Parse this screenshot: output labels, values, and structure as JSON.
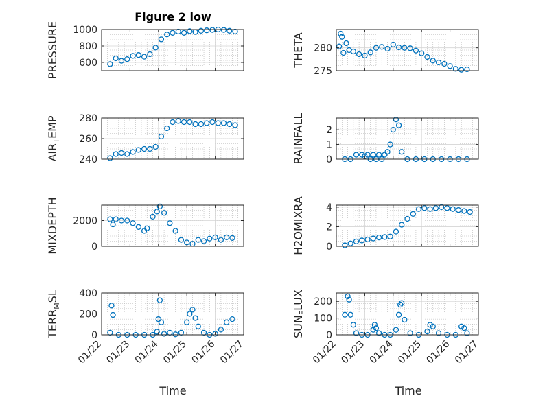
{
  "colors": {
    "marker": "#0072BD",
    "axis": "#262626",
    "grid": "#b0b0b0",
    "background": "#ffffff"
  },
  "chart_data": [
    {
      "type": "scatter",
      "title": "Figure 2 low",
      "ylabel": "PRESSURE",
      "ylim": [
        500,
        1000
      ],
      "yticks": [
        600,
        800,
        1000
      ],
      "xlim": [
        0,
        5
      ],
      "xgrid": true,
      "ygrid": true,
      "minor_grid": true,
      "series": [
        {
          "x": [
            0.3,
            0.5,
            0.7,
            0.9,
            1.1,
            1.3,
            1.5,
            1.7,
            1.9,
            2.1,
            2.3,
            2.5,
            2.7,
            2.9,
            3.1,
            3.3,
            3.5,
            3.7,
            3.9,
            4.1,
            4.3,
            4.5,
            4.7
          ],
          "y": [
            580,
            650,
            620,
            640,
            680,
            690,
            670,
            700,
            780,
            880,
            940,
            960,
            975,
            960,
            980,
            970,
            985,
            990,
            995,
            1000,
            995,
            985,
            975
          ]
        }
      ]
    },
    {
      "type": "scatter",
      "ylabel": "THETA",
      "ylim": [
        275,
        284
      ],
      "yticks": [
        275,
        280
      ],
      "xlim": [
        0,
        5
      ],
      "xgrid": true,
      "ygrid": true,
      "minor_grid": true,
      "series": [
        {
          "x": [
            0.1,
            0.15,
            0.2,
            0.25,
            0.35,
            0.45,
            0.6,
            0.8,
            1.0,
            1.2,
            1.4,
            1.6,
            1.8,
            2.0,
            2.2,
            2.4,
            2.6,
            2.8,
            3.0,
            3.2,
            3.4,
            3.6,
            3.8,
            4.0,
            4.2,
            4.4,
            4.6
          ],
          "y": [
            280.3,
            283.1,
            282.4,
            278.9,
            281.0,
            279.5,
            279.2,
            278.6,
            278.3,
            279.0,
            280.0,
            280.2,
            279.8,
            280.7,
            280.1,
            280.0,
            279.9,
            279.4,
            278.8,
            278.0,
            277.2,
            276.8,
            276.5,
            276.0,
            275.4,
            275.2,
            275.3
          ]
        }
      ]
    },
    {
      "type": "scatter",
      "ylabel": "AIR_TEMP",
      "ylim": [
        240,
        280
      ],
      "yticks": [
        240,
        260,
        280
      ],
      "xlim": [
        0,
        5
      ],
      "xgrid": true,
      "ygrid": true,
      "minor_grid": true,
      "series": [
        {
          "x": [
            0.3,
            0.5,
            0.7,
            0.9,
            1.1,
            1.3,
            1.5,
            1.7,
            1.9,
            2.1,
            2.3,
            2.5,
            2.7,
            2.9,
            3.1,
            3.3,
            3.5,
            3.7,
            3.9,
            4.1,
            4.3,
            4.5,
            4.7
          ],
          "y": [
            241,
            245,
            246,
            245,
            247,
            249,
            250,
            250,
            252,
            262,
            270,
            276,
            277,
            276,
            276,
            274,
            274,
            275,
            276,
            275,
            275,
            274,
            273
          ]
        }
      ]
    },
    {
      "type": "scatter",
      "ylabel": "RAINFALL",
      "ylim": [
        0,
        2.8
      ],
      "yticks": [
        0,
        1,
        2
      ],
      "xlim": [
        0,
        5
      ],
      "xgrid": true,
      "ygrid": true,
      "minor_grid": true,
      "series": [
        {
          "x": [
            0.3,
            0.5,
            0.7,
            0.9,
            1.0,
            1.1,
            1.2,
            1.3,
            1.4,
            1.5,
            1.6,
            1.7,
            1.8,
            1.9,
            2.0,
            2.1,
            2.2,
            2.3,
            2.5,
            2.8,
            3.1,
            3.4,
            3.7,
            4.0,
            4.3,
            4.6
          ],
          "y": [
            0.0,
            0.0,
            0.3,
            0.3,
            0.2,
            0.3,
            0.0,
            0.3,
            0.0,
            0.3,
            0.0,
            0.3,
            0.5,
            1.0,
            2.0,
            2.7,
            2.3,
            0.5,
            0.0,
            0.0,
            0.0,
            0.0,
            0.0,
            0.0,
            0.0,
            0.0
          ]
        }
      ]
    },
    {
      "type": "scatter",
      "ylabel": "MIXDEPTH",
      "ylim": [
        0,
        3200
      ],
      "yticks": [
        0,
        2000
      ],
      "xlim": [
        0,
        5
      ],
      "xgrid": true,
      "ygrid": true,
      "minor_grid": true,
      "series": [
        {
          "x": [
            0.3,
            0.4,
            0.5,
            0.7,
            0.9,
            1.1,
            1.3,
            1.5,
            1.6,
            1.8,
            1.95,
            2.05,
            2.2,
            2.4,
            2.6,
            2.8,
            3.0,
            3.2,
            3.4,
            3.6,
            3.8,
            4.0,
            4.2,
            4.4,
            4.6
          ],
          "y": [
            2100,
            1700,
            2100,
            2000,
            2000,
            1800,
            1500,
            1200,
            1400,
            2300,
            2700,
            3100,
            2600,
            1800,
            1200,
            500,
            300,
            200,
            500,
            400,
            600,
            700,
            500,
            700,
            650
          ]
        }
      ]
    },
    {
      "type": "scatter",
      "ylabel": "H2OMIXRA",
      "ylim": [
        0,
        4.2
      ],
      "yticks": [
        0,
        2,
        4
      ],
      "xlim": [
        0,
        5
      ],
      "xgrid": true,
      "ygrid": true,
      "minor_grid": true,
      "series": [
        {
          "x": [
            0.3,
            0.5,
            0.7,
            0.9,
            1.1,
            1.3,
            1.5,
            1.7,
            1.9,
            2.1,
            2.3,
            2.5,
            2.7,
            2.9,
            3.1,
            3.3,
            3.5,
            3.7,
            3.9,
            4.1,
            4.3,
            4.5,
            4.7
          ],
          "y": [
            0.1,
            0.3,
            0.5,
            0.6,
            0.7,
            0.8,
            0.9,
            0.95,
            1.0,
            1.5,
            2.2,
            2.8,
            3.3,
            3.8,
            3.9,
            3.8,
            3.9,
            4.0,
            3.9,
            3.8,
            3.7,
            3.6,
            3.5
          ]
        }
      ]
    },
    {
      "type": "scatter",
      "ylabel": "TERR_MSL",
      "ylim": [
        0,
        400
      ],
      "yticks": [
        0,
        200,
        400
      ],
      "xlim": [
        0,
        5
      ],
      "xgrid": true,
      "ygrid": true,
      "minor_grid": true,
      "series": [
        {
          "x": [
            0.3,
            0.35,
            0.4,
            0.6,
            0.9,
            1.2,
            1.5,
            1.8,
            1.95,
            2.0,
            2.05,
            2.1,
            2.2,
            2.4,
            2.6,
            2.8,
            3.0,
            3.1,
            3.2,
            3.3,
            3.4,
            3.6,
            3.8,
            4.0,
            4.2,
            4.4,
            4.6
          ],
          "y": [
            20,
            280,
            190,
            0,
            0,
            0,
            0,
            0,
            30,
            150,
            330,
            120,
            10,
            20,
            5,
            20,
            120,
            200,
            240,
            160,
            80,
            20,
            0,
            10,
            50,
            120,
            150
          ]
        }
      ]
    },
    {
      "type": "scatter",
      "ylabel": "SUN_FLUX",
      "ylim": [
        0,
        250
      ],
      "yticks": [
        0,
        100,
        200
      ],
      "xlim": [
        0,
        5
      ],
      "xgrid": true,
      "ygrid": true,
      "minor_grid": true,
      "series": [
        {
          "x": [
            0.3,
            0.4,
            0.45,
            0.5,
            0.6,
            0.7,
            0.9,
            1.1,
            1.3,
            1.35,
            1.4,
            1.5,
            1.7,
            1.9,
            2.1,
            2.2,
            2.25,
            2.3,
            2.4,
            2.6,
            2.9,
            3.2,
            3.3,
            3.4,
            3.6,
            3.9,
            4.2,
            4.4,
            4.5,
            4.6
          ],
          "y": [
            120,
            230,
            210,
            120,
            60,
            10,
            0,
            0,
            30,
            60,
            40,
            10,
            0,
            0,
            30,
            120,
            180,
            190,
            90,
            10,
            0,
            20,
            60,
            50,
            10,
            0,
            0,
            50,
            40,
            10
          ]
        }
      ]
    }
  ],
  "x_tick_labels": [
    "01/22",
    "01/23",
    "01/24",
    "01/25",
    "01/26",
    "01/27"
  ],
  "xlabel": "Time"
}
